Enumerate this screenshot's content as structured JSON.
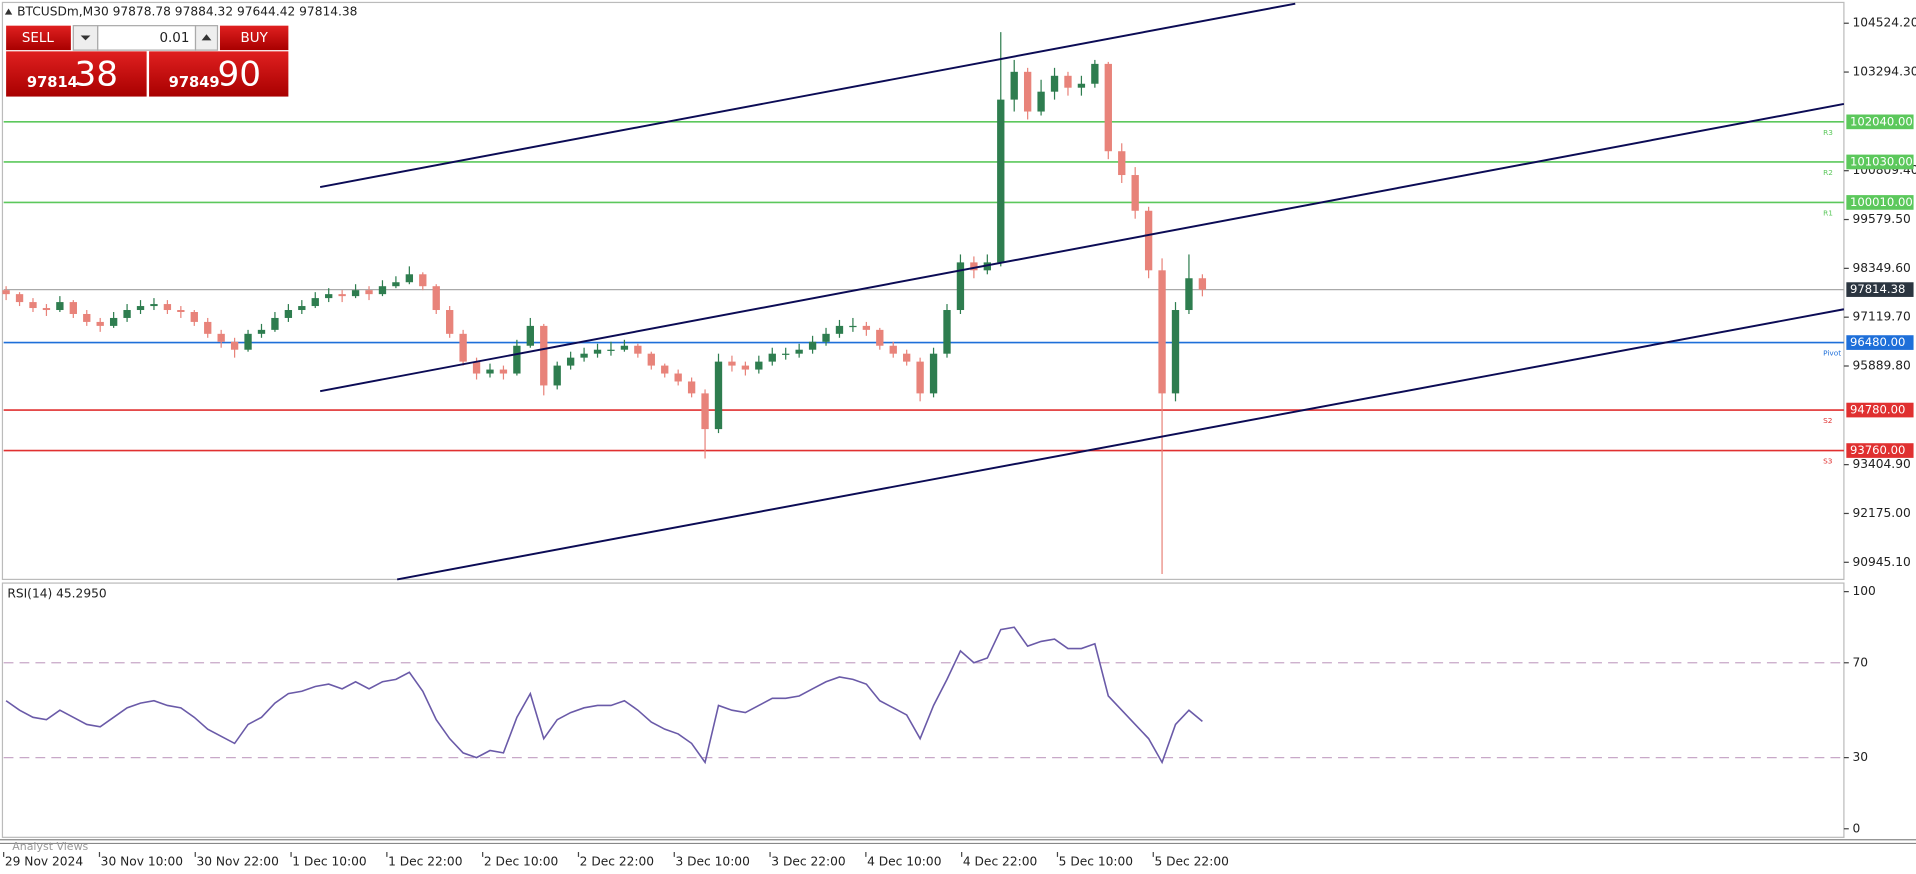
{
  "header": "BTCUSDm,M30  97878.78 97884.32 97644.42 97814.38",
  "trade": {
    "sell": "SELL",
    "buy": "BUY",
    "volume": "0.01",
    "sell_price": {
      "main": "97814",
      "fraction": "38"
    },
    "buy_price": {
      "main": "97849",
      "fraction": "90"
    }
  },
  "analyst": "Analyst Views",
  "chart_data": {
    "type": "candlestick",
    "ylim": [
      90514,
      105017
    ],
    "yticks": [
      {
        "value": 104524.2,
        "label": "104524.20"
      },
      {
        "value": 103294.3,
        "label": "103294.30"
      },
      {
        "value": 100809.4,
        "label": "100809.40"
      },
      {
        "value": 99579.5,
        "label": "99579.50"
      },
      {
        "value": 98349.6,
        "label": "98349.60"
      },
      {
        "value": 97119.7,
        "label": "97119.70"
      },
      {
        "value": 95889.8,
        "label": "95889.80"
      },
      {
        "value": 93404.9,
        "label": "93404.90"
      },
      {
        "value": 92175,
        "label": "92175.00"
      },
      {
        "value": 90945.1,
        "label": "90945.10"
      }
    ],
    "up_color": "#2e7d4f",
    "down_color": "#e8837a",
    "current_price": 97814.38,
    "levels": [
      {
        "name": "R3",
        "value": 102040,
        "label": "102040.00",
        "color": "#5cc85c"
      },
      {
        "name": "R2",
        "value": 101030,
        "label": "101030.00",
        "color": "#5cc85c"
      },
      {
        "name": "R1",
        "value": 100010,
        "label": "100010.00",
        "color": "#5cc85c"
      },
      {
        "name": "Pivot",
        "value": 96480,
        "label": "96480.00",
        "color": "#1e6fd9"
      },
      {
        "name": "S2",
        "value": 94780,
        "label": "94780.00",
        "color": "#e03030"
      },
      {
        "name": "S3",
        "value": 93760,
        "label": "93760.00",
        "color": "#e03030"
      }
    ],
    "time_labels": [
      "29 Nov 2024",
      "30 Nov 10:00",
      "30 Nov 22:00",
      "1 Dec 10:00",
      "1 Dec 22:00",
      "2 Dec 10:00",
      "2 Dec 22:00",
      "3 Dec 10:00",
      "3 Dec 22:00",
      "4 Dec 10:00",
      "4 Dec 22:00",
      "5 Dec 10:00",
      "5 Dec 22:00"
    ],
    "ohlc": [
      [
        97800,
        97900,
        97550,
        97700
      ],
      [
        97700,
        97750,
        97400,
        97500
      ],
      [
        97500,
        97600,
        97250,
        97350
      ],
      [
        97350,
        97450,
        97150,
        97300
      ],
      [
        97300,
        97650,
        97250,
        97500
      ],
      [
        97500,
        97550,
        97100,
        97200
      ],
      [
        97200,
        97300,
        96900,
        97000
      ],
      [
        97000,
        97100,
        96750,
        96900
      ],
      [
        96900,
        97250,
        96850,
        97100
      ],
      [
        97100,
        97450,
        97000,
        97300
      ],
      [
        97300,
        97550,
        97200,
        97400
      ],
      [
        97400,
        97600,
        97300,
        97450
      ],
      [
        97450,
        97550,
        97200,
        97300
      ],
      [
        97300,
        97400,
        97100,
        97250
      ],
      [
        97250,
        97300,
        96900,
        97000
      ],
      [
        97000,
        97100,
        96600,
        96700
      ],
      [
        96700,
        96800,
        96350,
        96500
      ],
      [
        96500,
        96600,
        96100,
        96300
      ],
      [
        96300,
        96800,
        96250,
        96700
      ],
      [
        96700,
        96950,
        96600,
        96800
      ],
      [
        96800,
        97250,
        96750,
        97100
      ],
      [
        97100,
        97450,
        97000,
        97300
      ],
      [
        97300,
        97550,
        97200,
        97400
      ],
      [
        97400,
        97750,
        97350,
        97600
      ],
      [
        97600,
        97850,
        97500,
        97700
      ],
      [
        97700,
        97800,
        97500,
        97650
      ],
      [
        97650,
        97950,
        97600,
        97800
      ],
      [
        97800,
        97900,
        97550,
        97700
      ],
      [
        97700,
        98050,
        97650,
        97900
      ],
      [
        97900,
        98150,
        97850,
        98000
      ],
      [
        98000,
        98400,
        97950,
        98200
      ],
      [
        98200,
        98250,
        97800,
        97900
      ],
      [
        97900,
        97950,
        97200,
        97300
      ],
      [
        97300,
        97400,
        96600,
        96700
      ],
      [
        96700,
        96800,
        95900,
        96000
      ],
      [
        96000,
        96100,
        95550,
        95700
      ],
      [
        95700,
        95950,
        95600,
        95800
      ],
      [
        95800,
        95900,
        95550,
        95700
      ],
      [
        95700,
        96550,
        95650,
        96400
      ],
      [
        96400,
        97100,
        96350,
        96900
      ],
      [
        96900,
        96950,
        95150,
        95400
      ],
      [
        95400,
        96000,
        95300,
        95900
      ],
      [
        95900,
        96250,
        95800,
        96100
      ],
      [
        96100,
        96350,
        96000,
        96200
      ],
      [
        96200,
        96450,
        96100,
        96300
      ],
      [
        96300,
        96500,
        96150,
        96300
      ],
      [
        96300,
        96550,
        96250,
        96400
      ],
      [
        96400,
        96450,
        96100,
        96200
      ],
      [
        96200,
        96250,
        95800,
        95900
      ],
      [
        95900,
        95950,
        95600,
        95700
      ],
      [
        95700,
        95800,
        95400,
        95500
      ],
      [
        95500,
        95600,
        95100,
        95200
      ],
      [
        95200,
        95300,
        93560,
        94300
      ],
      [
        94300,
        96200,
        94200,
        96000
      ],
      [
        96000,
        96150,
        95750,
        95900
      ],
      [
        95900,
        96000,
        95650,
        95800
      ],
      [
        95800,
        96150,
        95700,
        96000
      ],
      [
        96000,
        96350,
        95900,
        96200
      ],
      [
        96200,
        96350,
        96050,
        96200
      ],
      [
        96200,
        96450,
        96100,
        96300
      ],
      [
        96300,
        96650,
        96200,
        96500
      ],
      [
        96500,
        96850,
        96400,
        96700
      ],
      [
        96700,
        97050,
        96600,
        96900
      ],
      [
        96900,
        97100,
        96750,
        96900
      ],
      [
        96900,
        97000,
        96650,
        96800
      ],
      [
        96800,
        96850,
        96300,
        96400
      ],
      [
        96400,
        96500,
        96100,
        96200
      ],
      [
        96200,
        96300,
        95900,
        96000
      ],
      [
        96000,
        96100,
        95000,
        95200
      ],
      [
        95200,
        96350,
        95100,
        96200
      ],
      [
        96200,
        97450,
        96100,
        97300
      ],
      [
        97300,
        98700,
        97200,
        98500
      ],
      [
        98500,
        98650,
        98100,
        98300
      ],
      [
        98300,
        98700,
        98200,
        98500
      ],
      [
        98500,
        104300,
        98400,
        102600
      ],
      [
        102600,
        103600,
        102300,
        103300
      ],
      [
        103300,
        103400,
        102100,
        102300
      ],
      [
        102300,
        103100,
        102200,
        102800
      ],
      [
        102800,
        103400,
        102600,
        103200
      ],
      [
        103200,
        103300,
        102700,
        102900
      ],
      [
        102900,
        103200,
        102700,
        103000
      ],
      [
        103000,
        103600,
        102900,
        103500
      ],
      [
        103500,
        103550,
        101100,
        101300
      ],
      [
        101300,
        101500,
        100500,
        100700
      ],
      [
        100700,
        100900,
        99600,
        99800
      ],
      [
        99800,
        99900,
        98100,
        98300
      ],
      [
        98300,
        98600,
        90650,
        95200
      ],
      [
        95200,
        97500,
        95000,
        97300
      ],
      [
        97300,
        98700,
        97200,
        98100
      ],
      [
        98100,
        98200,
        97644.42,
        97814.38
      ]
    ],
    "rsi": {
      "title": "RSI(14) 45.2950",
      "color": "#6a5aa8",
      "ylim": [
        0,
        100
      ],
      "yticks": [
        0,
        30,
        70,
        100
      ],
      "levels": [
        30,
        70
      ],
      "values": [
        54,
        50,
        47,
        46,
        50,
        47,
        44,
        43,
        47,
        51,
        53,
        54,
        52,
        51,
        47,
        42,
        39,
        36,
        44,
        47,
        53,
        57,
        58,
        60,
        61,
        59,
        62,
        59,
        62,
        63,
        66,
        58,
        46,
        38,
        32,
        30,
        33,
        32,
        47,
        57,
        38,
        46,
        49,
        51,
        52,
        52,
        54,
        50,
        45,
        42,
        40,
        36,
        28,
        52,
        50,
        49,
        52,
        55,
        55,
        56,
        59,
        62,
        64,
        63,
        61,
        54,
        51,
        48,
        38,
        52,
        63,
        75,
        70,
        72,
        84,
        85,
        77,
        79,
        80,
        76,
        76,
        78,
        56,
        50,
        44,
        38,
        28,
        44,
        50,
        45.295
      ]
    }
  }
}
